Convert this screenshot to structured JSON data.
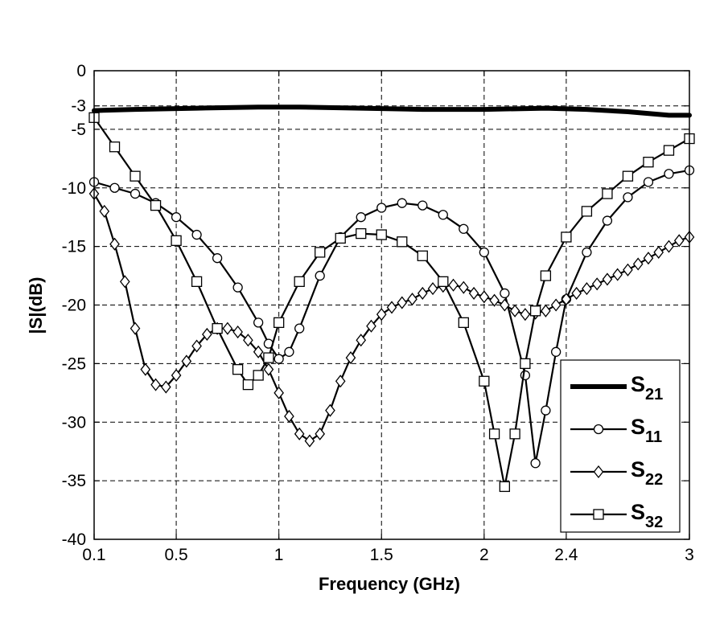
{
  "chart_data": {
    "type": "line",
    "xlabel": "Frequency (GHz)",
    "ylabel": "|S|(dB)",
    "xlim": [
      0.1,
      3
    ],
    "ylim": [
      -40,
      0
    ],
    "x_ticks": [
      0.1,
      0.5,
      1,
      1.5,
      2,
      2.4,
      3
    ],
    "x_tick_labels": [
      "0.1",
      "0.5",
      "1",
      "1.5",
      "2",
      "2.4",
      "3"
    ],
    "y_ticks": [
      0,
      -3,
      -5,
      -10,
      -15,
      -20,
      -25,
      -30,
      -35,
      -40
    ],
    "y_tick_labels": [
      "0",
      "-3",
      "-5",
      "-10",
      "-15",
      "-20",
      "-25",
      "-30",
      "-35",
      "-40"
    ],
    "grid": true,
    "legend_position": "bottom-right",
    "series": [
      {
        "name": "S21",
        "label_main": "S",
        "label_sub": "21",
        "marker": "none",
        "line_width": "thick",
        "x": [
          0.1,
          0.3,
          0.6,
          0.9,
          1.1,
          1.4,
          1.7,
          2.0,
          2.3,
          2.5,
          2.7,
          2.9,
          3.0
        ],
        "y": [
          -3.4,
          -3.3,
          -3.2,
          -3.1,
          -3.1,
          -3.2,
          -3.3,
          -3.3,
          -3.2,
          -3.3,
          -3.5,
          -3.8,
          -3.8
        ]
      },
      {
        "name": "S11",
        "label_main": "S",
        "label_sub": "11",
        "marker": "circle",
        "x": [
          0.1,
          0.2,
          0.3,
          0.4,
          0.5,
          0.6,
          0.7,
          0.8,
          0.9,
          0.95,
          1.0,
          1.05,
          1.1,
          1.2,
          1.3,
          1.4,
          1.5,
          1.6,
          1.7,
          1.8,
          1.9,
          2.0,
          2.1,
          2.2,
          2.25,
          2.3,
          2.35,
          2.4,
          2.5,
          2.6,
          2.7,
          2.8,
          2.9,
          3.0
        ],
        "y": [
          -9.5,
          -10.0,
          -10.5,
          -11.3,
          -12.5,
          -14.0,
          -16.0,
          -18.5,
          -21.5,
          -23.3,
          -24.6,
          -24.0,
          -22.0,
          -17.5,
          -14.2,
          -12.5,
          -11.7,
          -11.3,
          -11.5,
          -12.3,
          -13.5,
          -15.5,
          -19.0,
          -26.0,
          -33.5,
          -29.0,
          -24.0,
          -19.5,
          -15.5,
          -12.8,
          -10.8,
          -9.5,
          -8.8,
          -8.5
        ]
      },
      {
        "name": "S22",
        "label_main": "S",
        "label_sub": "22",
        "marker": "diamond",
        "x": [
          0.1,
          0.15,
          0.2,
          0.25,
          0.3,
          0.35,
          0.4,
          0.45,
          0.5,
          0.55,
          0.6,
          0.65,
          0.7,
          0.75,
          0.8,
          0.85,
          0.9,
          0.95,
          1.0,
          1.05,
          1.1,
          1.15,
          1.2,
          1.25,
          1.3,
          1.35,
          1.4,
          1.45,
          1.5,
          1.55,
          1.6,
          1.65,
          1.7,
          1.75,
          1.8,
          1.85,
          1.9,
          1.95,
          2.0,
          2.05,
          2.1,
          2.15,
          2.2,
          2.25,
          2.3,
          2.35,
          2.4,
          2.45,
          2.5,
          2.55,
          2.6,
          2.65,
          2.7,
          2.75,
          2.8,
          2.85,
          2.9,
          2.95,
          3.0
        ],
        "y": [
          -10.5,
          -12.0,
          -14.8,
          -18.0,
          -22.0,
          -25.5,
          -26.8,
          -27.0,
          -26.0,
          -24.8,
          -23.5,
          -22.5,
          -22.0,
          -22.0,
          -22.3,
          -23.0,
          -24.0,
          -25.5,
          -27.5,
          -29.5,
          -31.0,
          -31.6,
          -31.0,
          -29.0,
          -26.5,
          -24.5,
          -23.0,
          -21.8,
          -20.8,
          -20.2,
          -19.8,
          -19.5,
          -19.0,
          -18.6,
          -18.4,
          -18.3,
          -18.5,
          -19.0,
          -19.3,
          -19.6,
          -20.0,
          -20.5,
          -20.8,
          -20.7,
          -20.5,
          -20.0,
          -19.5,
          -19.0,
          -18.6,
          -18.2,
          -17.8,
          -17.4,
          -17.0,
          -16.5,
          -16.0,
          -15.5,
          -15.0,
          -14.5,
          -14.2
        ]
      },
      {
        "name": "S32",
        "label_main": "S",
        "label_sub": "32",
        "marker": "square",
        "x": [
          0.1,
          0.2,
          0.3,
          0.4,
          0.5,
          0.6,
          0.7,
          0.8,
          0.85,
          0.9,
          0.95,
          1.0,
          1.1,
          1.2,
          1.3,
          1.4,
          1.5,
          1.6,
          1.7,
          1.8,
          1.9,
          2.0,
          2.05,
          2.1,
          2.15,
          2.2,
          2.25,
          2.3,
          2.4,
          2.5,
          2.6,
          2.7,
          2.8,
          2.9,
          3.0
        ],
        "y": [
          -4.0,
          -6.5,
          -9.0,
          -11.5,
          -14.5,
          -18.0,
          -22.0,
          -25.5,
          -26.8,
          -26.0,
          -24.5,
          -21.5,
          -18.0,
          -15.5,
          -14.3,
          -13.9,
          -14.0,
          -14.6,
          -15.8,
          -18.0,
          -21.5,
          -26.5,
          -31.0,
          -35.5,
          -31.0,
          -25.0,
          -20.5,
          -17.5,
          -14.2,
          -12.0,
          -10.5,
          -9.0,
          -7.8,
          -6.8,
          -5.8
        ]
      }
    ]
  }
}
